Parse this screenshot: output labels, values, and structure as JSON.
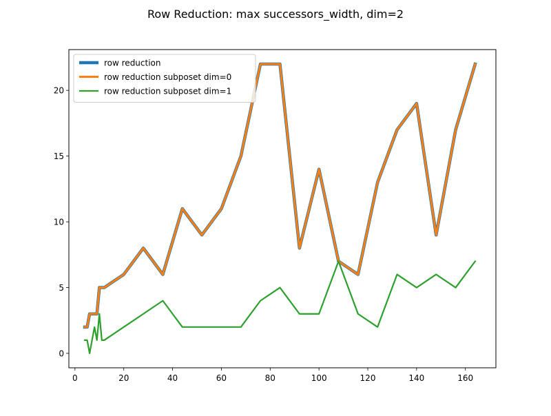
{
  "chart_data": {
    "type": "line",
    "title": "Row Reduction: max successors_width, dim=2",
    "xlabel": "",
    "ylabel": "",
    "xlim": [
      -2.5,
      172.5
    ],
    "ylim": [
      -1.1,
      23.1
    ],
    "xticks": [
      0,
      20,
      40,
      60,
      80,
      100,
      120,
      140,
      160
    ],
    "yticks": [
      0,
      5,
      10,
      15,
      20
    ],
    "grid": false,
    "legend_position": "top-left",
    "series": [
      {
        "name": "row reduction",
        "color": "#1f77b4",
        "width": 4.5,
        "x": [
          4,
          5,
          6,
          7,
          8,
          9,
          10,
          11,
          12,
          20,
          28,
          36,
          44,
          52,
          60,
          68,
          76,
          84,
          92,
          100,
          108,
          116,
          124,
          132,
          140,
          148,
          156,
          164
        ],
        "y": [
          2,
          2,
          3,
          3,
          3,
          3,
          5,
          5,
          5,
          6,
          8,
          6,
          11,
          9,
          11,
          15,
          22,
          22,
          8,
          14,
          7,
          6,
          13,
          17,
          19,
          9,
          17,
          22
        ]
      },
      {
        "name": "row reduction subposet dim=0",
        "color": "#ff7f0e",
        "width": 3,
        "x": [
          4,
          5,
          6,
          7,
          8,
          9,
          10,
          11,
          12,
          20,
          28,
          36,
          44,
          52,
          60,
          68,
          76,
          84,
          92,
          100,
          108,
          116,
          124,
          132,
          140,
          148,
          156,
          164
        ],
        "y": [
          2,
          2,
          3,
          3,
          3,
          3,
          5,
          5,
          5,
          6,
          8,
          6,
          11,
          9,
          11,
          15,
          22,
          22,
          8,
          14,
          7,
          6,
          13,
          17,
          19,
          9,
          17,
          22
        ]
      },
      {
        "name": "row reduction subposet dim=1",
        "color": "#2ca02c",
        "width": 2.2,
        "x": [
          4,
          5,
          6,
          7,
          8,
          9,
          10,
          11,
          12,
          20,
          28,
          36,
          44,
          52,
          60,
          68,
          76,
          84,
          92,
          100,
          108,
          116,
          124,
          132,
          140,
          148,
          156,
          164
        ],
        "y": [
          1,
          1,
          0,
          1,
          2,
          1,
          3,
          1,
          1,
          2,
          3,
          4,
          2,
          2,
          2,
          2,
          4,
          5,
          3,
          3,
          7,
          3,
          2,
          6,
          5,
          6,
          5,
          7
        ]
      }
    ]
  }
}
